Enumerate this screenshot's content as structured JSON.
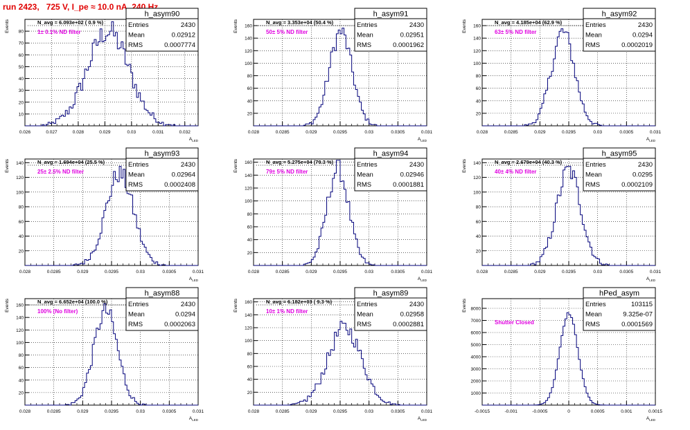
{
  "run_title": "run 2423,   725 V, I_pe ≈ 10.0 nA, 240 Hz",
  "colors": {
    "title": "#e00000",
    "histline": "#00007a",
    "annotation": "#e000e0",
    "grid": "#000000"
  },
  "y_axis_label": "Events",
  "x_axis_label": "A_LED",
  "chart_data": [
    {
      "type": "histogram",
      "name": "h_asym90",
      "entries": "2430",
      "mean": "0.02912",
      "rms": "0.0007774",
      "navg": "N_avg = 6.093e+02 ( 0.9 %)",
      "filter": "1± 0.1% ND filter",
      "xlim": [
        0.026,
        0.0325
      ],
      "ylim": [
        0,
        90
      ],
      "xticks": [
        0.026,
        0.027,
        0.028,
        0.029,
        0.03,
        0.031,
        0.032
      ],
      "xticklabels": [
        "0.026",
        "0.027",
        "0.028",
        "0.029",
        "0.03",
        "0.031",
        "0.032"
      ],
      "yticks": [
        10,
        20,
        30,
        40,
        50,
        60,
        70,
        80
      ],
      "mu": 0.02912,
      "sigma": 0.00078,
      "peak": 80
    },
    {
      "type": "histogram",
      "name": "h_asym91",
      "entries": "2430",
      "mean": "0.02951",
      "rms": "0.0001962",
      "navg": "N_avg = 3.353e+04 (50.4 %)",
      "filter": "50± 5% ND filter",
      "xlim": [
        0.028,
        0.031
      ],
      "ylim": [
        0,
        170
      ],
      "xticks": [
        0.028,
        0.0285,
        0.029,
        0.0295,
        0.03,
        0.0305,
        0.031
      ],
      "xticklabels": [
        "0.028",
        "0.0285",
        "0.029",
        "0.0295",
        "0.03",
        "0.0305",
        "0.031"
      ],
      "yticks": [
        20,
        40,
        60,
        80,
        100,
        120,
        140,
        160
      ],
      "mu": 0.02951,
      "sigma": 0.000196,
      "peak": 150
    },
    {
      "type": "histogram",
      "name": "h_asym92",
      "entries": "2430",
      "mean": "0.0294",
      "rms": "0.0002019",
      "navg": "N_avg = 4.185e+04 (62.9 %)",
      "filter": "63± 5% ND filter",
      "xlim": [
        0.028,
        0.031
      ],
      "ylim": [
        0,
        170
      ],
      "xticks": [
        0.028,
        0.0285,
        0.029,
        0.0295,
        0.03,
        0.0305,
        0.031
      ],
      "xticklabels": [
        "0.028",
        "0.0285",
        "0.029",
        "0.0295",
        "0.03",
        "0.0305",
        "0.031"
      ],
      "yticks": [
        20,
        40,
        60,
        80,
        100,
        120,
        140,
        160
      ],
      "mu": 0.0294,
      "sigma": 0.0002,
      "peak": 150
    },
    {
      "type": "histogram",
      "name": "h_asym93",
      "entries": "2430",
      "mean": "0.02964",
      "rms": "0.0002408",
      "navg": "N_avg = 1.694e+04 (25.5 %)",
      "filter": "25± 2.5% ND filter",
      "xlim": [
        0.028,
        0.031
      ],
      "ylim": [
        0,
        145
      ],
      "xticks": [
        0.028,
        0.0285,
        0.029,
        0.0295,
        0.03,
        0.0305,
        0.031
      ],
      "xticklabels": [
        "0.028",
        "0.0285",
        "0.029",
        "0.0295",
        "0.03",
        "0.0305",
        "0.031"
      ],
      "yticks": [
        20,
        40,
        60,
        80,
        100,
        120,
        140
      ],
      "mu": 0.02964,
      "sigma": 0.00024,
      "peak": 125
    },
    {
      "type": "histogram",
      "name": "h_asym94",
      "entries": "2430",
      "mean": "0.02946",
      "rms": "0.0001881",
      "navg": "N_avg = 5.275e+04 (79.3 %)",
      "filter": "79± 5% ND filter",
      "xlim": [
        0.028,
        0.031
      ],
      "ylim": [
        0,
        165
      ],
      "xticks": [
        0.028,
        0.0285,
        0.029,
        0.0295,
        0.03,
        0.0305,
        0.031
      ],
      "xticklabels": [
        "0.028",
        "0.0285",
        "0.029",
        "0.0295",
        "0.03",
        "0.0305",
        "0.031"
      ],
      "yticks": [
        20,
        40,
        60,
        80,
        100,
        120,
        140,
        160
      ],
      "mu": 0.02946,
      "sigma": 0.000188,
      "peak": 150
    },
    {
      "type": "histogram",
      "name": "h_asym95",
      "entries": "2430",
      "mean": "0.0295",
      "rms": "0.0002109",
      "navg": "N_avg = 2.679e+04 (40.3 %)",
      "filter": "40± 4% ND filter",
      "xlim": [
        0.028,
        0.031
      ],
      "ylim": [
        0,
        145
      ],
      "xticks": [
        0.028,
        0.0285,
        0.029,
        0.0295,
        0.03,
        0.0305,
        0.031
      ],
      "xticklabels": [
        "0.028",
        "0.0285",
        "0.029",
        "0.0295",
        "0.03",
        "0.0305",
        "0.031"
      ],
      "yticks": [
        20,
        40,
        60,
        80,
        100,
        120,
        140
      ],
      "mu": 0.0295,
      "sigma": 0.00021,
      "peak": 130
    },
    {
      "type": "histogram",
      "name": "h_asym88",
      "entries": "2430",
      "mean": "0.0294",
      "rms": "0.0002063",
      "navg": "N_avg = 6.652e+04 (100.0 %)",
      "filter": "100% (No filter)",
      "xlim": [
        0.028,
        0.031
      ],
      "ylim": [
        0,
        170
      ],
      "xticks": [
        0.028,
        0.0285,
        0.029,
        0.0295,
        0.03,
        0.0305,
        0.031
      ],
      "xticklabels": [
        "0.028",
        "0.0285",
        "0.029",
        "0.0295",
        "0.03",
        "0.0305",
        "0.031"
      ],
      "yticks": [
        20,
        40,
        60,
        80,
        100,
        120,
        140,
        160
      ],
      "mu": 0.0294,
      "sigma": 0.000206,
      "peak": 150
    },
    {
      "type": "histogram",
      "name": "h_asym89",
      "entries": "2430",
      "mean": "0.02958",
      "rms": "0.0002881",
      "navg": "N_avg = 6.182e+03 ( 9.3 %)",
      "filter": "10± 1% ND filter",
      "xlim": [
        0.028,
        0.031
      ],
      "ylim": [
        0,
        165
      ],
      "xticks": [
        0.028,
        0.0285,
        0.029,
        0.0295,
        0.03,
        0.0305,
        0.031
      ],
      "xticklabels": [
        "0.028",
        "0.0285",
        "0.029",
        "0.0295",
        "0.03",
        "0.0305",
        "0.031"
      ],
      "yticks": [
        20,
        40,
        60,
        80,
        100,
        120,
        140,
        160
      ],
      "mu": 0.02958,
      "sigma": 0.00029,
      "peak": 120
    },
    {
      "type": "histogram",
      "name": "hPed_asym",
      "entries": "103115",
      "mean": "9.325e-07",
      "rms": "0.0001569",
      "navg": "",
      "filter": "Shutter Closed",
      "xlim": [
        -0.0015,
        0.0015
      ],
      "ylim": [
        0,
        8800
      ],
      "xticks": [
        -0.0015,
        -0.001,
        -0.0005,
        0,
        0.0005,
        0.001,
        0.0015
      ],
      "xticklabels": [
        "-0.0015",
        "-0.001",
        "-0.0005",
        "0",
        "0.0005",
        "0.001",
        "0.0015"
      ],
      "yticks": [
        1000,
        2000,
        3000,
        4000,
        5000,
        6000,
        7000,
        8000
      ],
      "mu": 0.0,
      "sigma": 0.000157,
      "peak": 7600
    }
  ]
}
